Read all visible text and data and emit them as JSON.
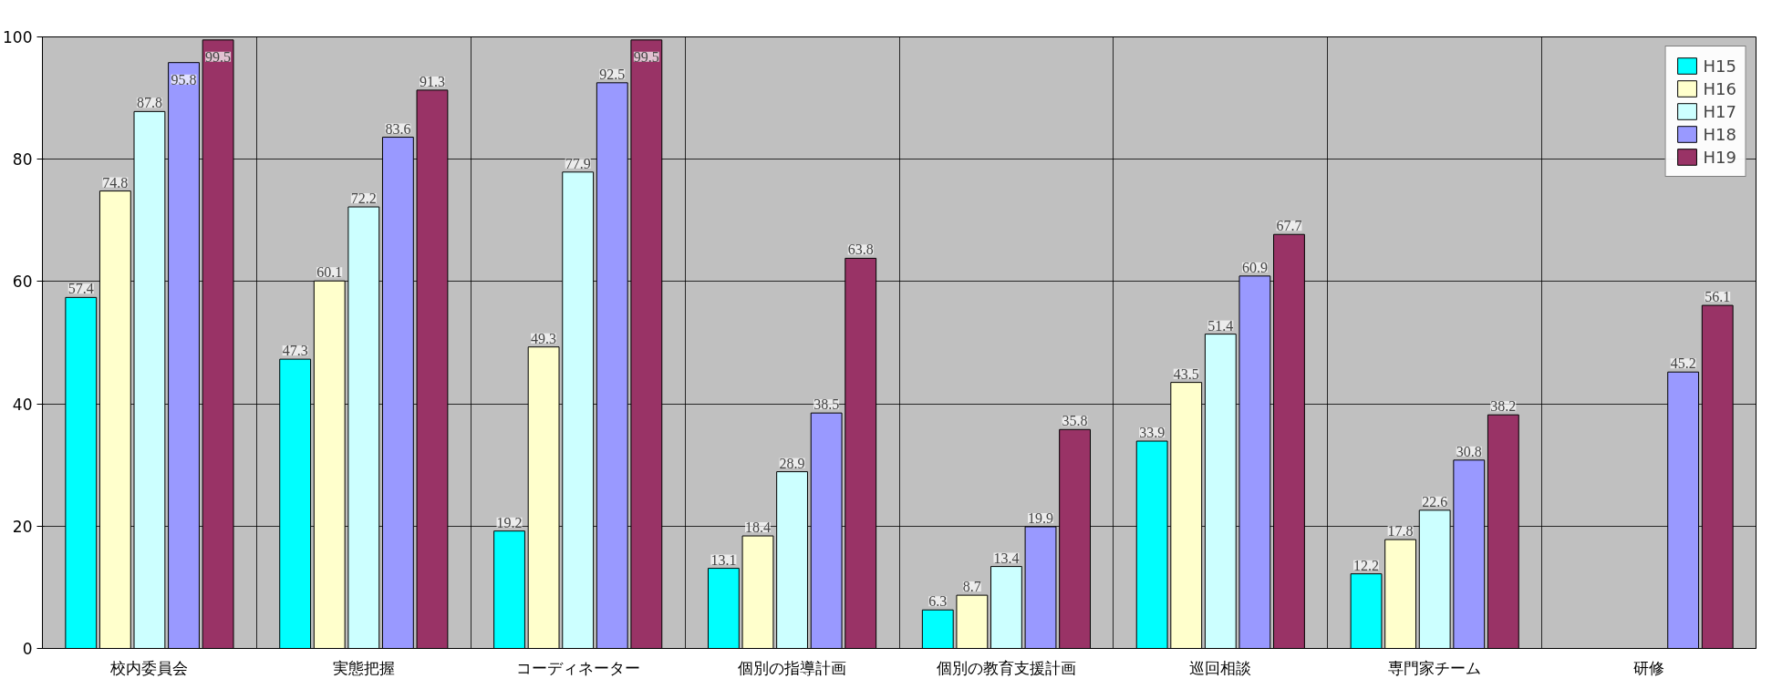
{
  "chart_data": {
    "type": "bar",
    "categories": [
      "校内委員会",
      "実態把握",
      "コーディネーター",
      "個別の指導計画",
      "個別の教育支援計画",
      "巡回相談",
      "専門家チーム",
      "研修"
    ],
    "series": [
      {
        "name": "H15",
        "color": "#00ffff",
        "values": [
          57.4,
          47.3,
          19.2,
          13.1,
          6.3,
          33.9,
          12.2,
          null
        ]
      },
      {
        "name": "H16",
        "color": "#ffffcc",
        "values": [
          74.8,
          60.1,
          49.3,
          18.4,
          8.7,
          43.5,
          17.8,
          null
        ]
      },
      {
        "name": "H17",
        "color": "#ccffff",
        "values": [
          87.8,
          72.2,
          77.9,
          28.9,
          13.4,
          51.4,
          22.6,
          null
        ]
      },
      {
        "name": "H18",
        "color": "#9999ff",
        "values": [
          95.8,
          83.6,
          92.5,
          38.5,
          19.9,
          60.9,
          30.8,
          45.2
        ]
      },
      {
        "name": "H19",
        "color": "#993366",
        "values": [
          99.5,
          91.3,
          99.5,
          63.8,
          35.8,
          67.7,
          38.2,
          56.1
        ]
      }
    ],
    "ylim": [
      0,
      100
    ],
    "yticks": [
      0,
      20,
      40,
      60,
      80,
      100
    ],
    "grid": true,
    "legend": "top right",
    "data_labels": true
  }
}
